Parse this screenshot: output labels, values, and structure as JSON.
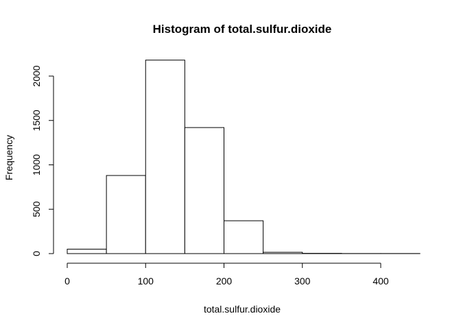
{
  "chart_data": {
    "type": "bar",
    "title": "Histogram of total.sulfur.dioxide",
    "xlabel": "total.sulfur.dioxide",
    "ylabel": "Frequency",
    "bins": [
      {
        "start": 0,
        "end": 50,
        "count": 50
      },
      {
        "start": 50,
        "end": 100,
        "count": 880
      },
      {
        "start": 100,
        "end": 150,
        "count": 2180
      },
      {
        "start": 150,
        "end": 200,
        "count": 1420
      },
      {
        "start": 200,
        "end": 250,
        "count": 370
      },
      {
        "start": 250,
        "end": 300,
        "count": 15
      },
      {
        "start": 300,
        "end": 350,
        "count": 3
      },
      {
        "start": 350,
        "end": 400,
        "count": 1
      },
      {
        "start": 400,
        "end": 450,
        "count": 1
      }
    ],
    "xticks": [
      0,
      100,
      200,
      300,
      400
    ],
    "yticks": [
      0,
      500,
      1000,
      1500,
      2000
    ],
    "xlim": [
      0,
      450
    ],
    "ylim": [
      0,
      2180
    ],
    "grid": false,
    "bar_fill": "#ffffff",
    "bar_stroke": "#000000"
  }
}
